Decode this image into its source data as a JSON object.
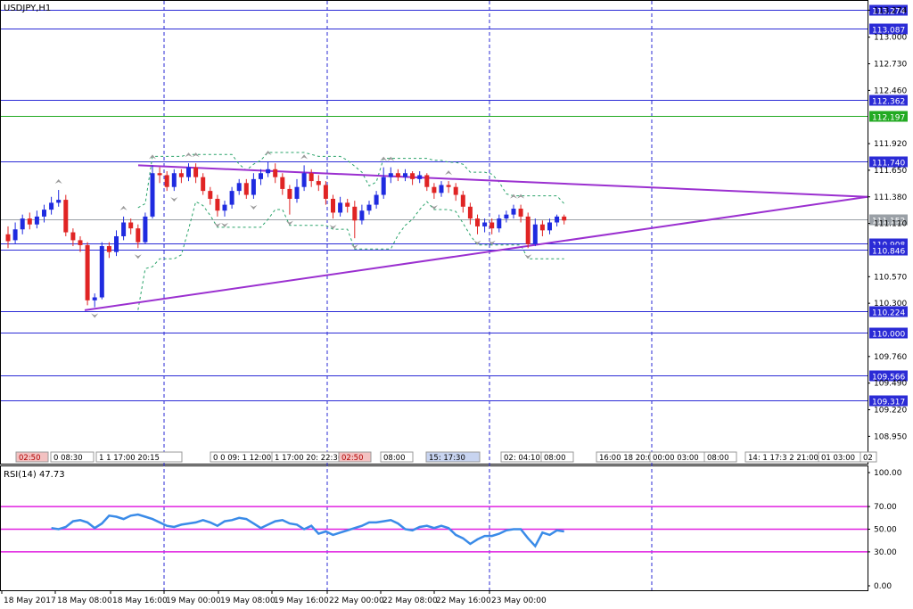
{
  "chart_data": [
    {
      "type": "candlestick",
      "title": "USDJPY,H1",
      "ylim": [
        108.7,
        113.35
      ],
      "yticks": [
        "113.274",
        "113.000",
        "112.730",
        "112.460",
        "111.920",
        "111.650",
        "111.380",
        "111.110",
        "110.570",
        "110.300",
        "109.760",
        "109.490",
        "109.220",
        "108.950"
      ],
      "h_levels": [
        {
          "value": 113.274,
          "label": "113.274",
          "color": "#2b2bd6"
        },
        {
          "value": 113.087,
          "label": "113.087",
          "color": "#2b2bd6"
        },
        {
          "value": 112.362,
          "label": "112.362",
          "color": "#2b2bd6"
        },
        {
          "value": 112.197,
          "label": "112.197",
          "color": "#22aa22"
        },
        {
          "value": 111.74,
          "label": "111.740",
          "color": "#2b2bd6"
        },
        {
          "value": 111.152,
          "label": "111.152",
          "color": "#9aa0a6"
        },
        {
          "value": 110.908,
          "label": "110.908",
          "color": "#2b2bd6"
        },
        {
          "value": 110.846,
          "label": "110.846",
          "color": "#2b2bd6"
        },
        {
          "value": 110.224,
          "label": "110.224",
          "color": "#2b2bd6"
        },
        {
          "value": 110.0,
          "label": "110.000",
          "color": "#2b2bd6"
        },
        {
          "value": 109.566,
          "label": "109.566",
          "color": "#2b2bd6"
        },
        {
          "value": 109.317,
          "label": "109.317",
          "color": "#2b2bd6"
        }
      ],
      "trendlines": [
        {
          "from": [
            0,
            111.7
          ],
          "to": [
            148,
            111.38
          ]
        },
        {
          "from": [
            0,
            110.23
          ],
          "to": [
            148,
            111.38
          ]
        }
      ],
      "candles": [
        [
          111.0,
          110.93,
          111.08,
          110.86
        ],
        [
          110.94,
          111.05,
          111.12,
          110.9
        ],
        [
          111.05,
          111.16,
          111.2,
          111.0
        ],
        [
          111.16,
          111.1,
          111.22,
          111.05
        ],
        [
          111.1,
          111.18,
          111.24,
          111.06
        ],
        [
          111.18,
          111.25,
          111.3,
          111.12
        ],
        [
          111.25,
          111.32,
          111.38,
          111.2
        ],
        [
          111.32,
          111.35,
          111.45,
          111.28
        ],
        [
          111.35,
          111.02,
          111.4,
          110.98
        ],
        [
          111.02,
          110.94,
          111.06,
          110.88
        ],
        [
          110.94,
          110.89,
          110.98,
          110.82
        ],
        [
          110.89,
          110.33,
          110.92,
          110.28
        ],
        [
          110.33,
          110.36,
          110.4,
          110.26
        ],
        [
          110.36,
          110.88,
          110.92,
          110.34
        ],
        [
          110.88,
          110.82,
          110.92,
          110.76
        ],
        [
          110.82,
          110.98,
          111.04,
          110.78
        ],
        [
          110.98,
          111.12,
          111.18,
          110.94
        ],
        [
          111.12,
          111.06,
          111.16,
          111.0
        ],
        [
          111.06,
          110.92,
          111.1,
          110.86
        ],
        [
          110.92,
          111.18,
          111.22,
          110.9
        ],
        [
          111.18,
          111.62,
          111.7,
          111.16
        ],
        [
          111.62,
          111.6,
          111.68,
          111.52
        ],
        [
          111.6,
          111.48,
          111.64,
          111.44
        ],
        [
          111.48,
          111.62,
          111.66,
          111.44
        ],
        [
          111.62,
          111.58,
          111.66,
          111.52
        ],
        [
          111.58,
          111.68,
          111.72,
          111.54
        ],
        [
          111.68,
          111.58,
          111.72,
          111.52
        ],
        [
          111.58,
          111.44,
          111.62,
          111.4
        ],
        [
          111.44,
          111.36,
          111.48,
          111.3
        ],
        [
          111.36,
          111.24,
          111.4,
          111.18
        ],
        [
          111.24,
          111.3,
          111.34,
          111.18
        ],
        [
          111.3,
          111.44,
          111.48,
          111.26
        ],
        [
          111.44,
          111.52,
          111.56,
          111.4
        ],
        [
          111.52,
          111.4,
          111.56,
          111.36
        ],
        [
          111.4,
          111.56,
          111.62,
          111.36
        ],
        [
          111.56,
          111.62,
          111.66,
          111.5
        ],
        [
          111.62,
          111.66,
          111.74,
          111.58
        ],
        [
          111.66,
          111.58,
          111.72,
          111.52
        ],
        [
          111.58,
          111.46,
          111.62,
          111.4
        ],
        [
          111.46,
          111.36,
          111.5,
          111.2
        ],
        [
          111.36,
          111.48,
          111.56,
          111.32
        ],
        [
          111.48,
          111.62,
          111.7,
          111.44
        ],
        [
          111.62,
          111.54,
          111.66,
          111.48
        ],
        [
          111.54,
          111.5,
          111.6,
          111.44
        ],
        [
          111.5,
          111.36,
          111.54,
          111.3
        ],
        [
          111.36,
          111.22,
          111.4,
          111.16
        ],
        [
          111.22,
          111.32,
          111.38,
          111.18
        ],
        [
          111.32,
          111.28,
          111.36,
          111.22
        ],
        [
          111.28,
          111.14,
          111.34,
          110.96
        ],
        [
          111.14,
          111.24,
          111.3,
          111.1
        ],
        [
          111.24,
          111.3,
          111.34,
          111.2
        ],
        [
          111.3,
          111.4,
          111.44,
          111.26
        ],
        [
          111.4,
          111.58,
          111.68,
          111.36
        ],
        [
          111.58,
          111.62,
          111.68,
          111.52
        ],
        [
          111.62,
          111.58,
          111.66,
          111.54
        ],
        [
          111.58,
          111.62,
          111.66,
          111.54
        ],
        [
          111.62,
          111.56,
          111.64,
          111.5
        ],
        [
          111.56,
          111.6,
          111.64,
          111.52
        ],
        [
          111.6,
          111.48,
          111.62,
          111.44
        ],
        [
          111.48,
          111.42,
          111.52,
          111.36
        ],
        [
          111.42,
          111.5,
          111.54,
          111.38
        ],
        [
          111.5,
          111.48,
          111.54,
          111.42
        ],
        [
          111.48,
          111.4,
          111.52,
          111.34
        ],
        [
          111.4,
          111.28,
          111.44,
          111.22
        ],
        [
          111.28,
          111.16,
          111.32,
          111.1
        ],
        [
          111.16,
          111.08,
          111.2,
          111.0
        ],
        [
          111.08,
          111.12,
          111.16,
          111.02
        ],
        [
          111.12,
          111.06,
          111.16,
          111.0
        ],
        [
          111.06,
          111.16,
          111.2,
          111.02
        ],
        [
          111.16,
          111.2,
          111.24,
          111.12
        ],
        [
          111.2,
          111.26,
          111.3,
          111.16
        ],
        [
          111.26,
          111.18,
          111.3,
          111.12
        ],
        [
          111.18,
          110.9,
          111.22,
          110.86
        ],
        [
          110.9,
          111.1,
          111.16,
          110.88
        ],
        [
          111.1,
          111.04,
          111.14,
          110.98
        ],
        [
          111.04,
          111.12,
          111.16,
          111.0
        ],
        [
          111.12,
          111.18,
          111.2,
          111.08
        ],
        [
          111.18,
          111.14,
          111.2,
          111.1
        ]
      ]
    },
    {
      "type": "line",
      "title": "RSI(14) 47.73",
      "ylim": [
        0,
        100
      ],
      "yticks": [
        "100.00",
        "70.00",
        "50.00",
        "30.00",
        "0.00"
      ],
      "levels": [
        70,
        50,
        30
      ],
      "series": [
        {
          "values": [
            51,
            50,
            52,
            57,
            58,
            56,
            51,
            55,
            62,
            61,
            59,
            62,
            63,
            61,
            59,
            56,
            53,
            52,
            54,
            55,
            56,
            58,
            56,
            53,
            57,
            58,
            60,
            59,
            55,
            51,
            54,
            57,
            58,
            55,
            54,
            50,
            53,
            46,
            48,
            45,
            47,
            49,
            51,
            53,
            56,
            56,
            57,
            58,
            55,
            50,
            49,
            52,
            53,
            51,
            53,
            51,
            45,
            42,
            37,
            41,
            44,
            44,
            46,
            49,
            50,
            50,
            42,
            35,
            47,
            45,
            49,
            48
          ]
        }
      ]
    }
  ],
  "x_labels": [
    "18 May 2017",
    "18 May 08:00",
    "18 May 16:00",
    "19 May 00:00",
    "19 May 08:00",
    "19 May 16:00",
    "22 May 00:00",
    "22 May 08:00",
    "22 May 16:00",
    "23 May 00:00"
  ],
  "time_tags": [
    {
      "text": "02:50",
      "color": "red"
    },
    {
      "text": "0 08:30",
      "color": "white"
    },
    {
      "text": "1 1 17:00 20:15",
      "color": "white"
    },
    {
      "text": "0 0 09: 1 12:00",
      "color": "white"
    },
    {
      "text": "1 17:00 20: 22:30",
      "color": "white"
    },
    {
      "text": "02:50",
      "color": "red"
    },
    {
      "text": "08:00",
      "color": "white"
    },
    {
      "text": "15: 17:30",
      "color": "blue"
    },
    {
      "text": "02: 04:10",
      "color": "white"
    },
    {
      "text": "08:00",
      "color": "white"
    },
    {
      "text": "16:00 18 20:0 22",
      "color": "white"
    },
    {
      "text": "00:00 03:00",
      "color": "white"
    },
    {
      "text": "08:00",
      "color": "white"
    },
    {
      "text": "14: 1 17:3 2 21:00",
      "color": "white"
    },
    {
      "text": "01 03:00",
      "color": "white"
    },
    {
      "text": "02",
      "color": "white"
    }
  ],
  "colors": {
    "bull": "#1f2be0",
    "bear": "#e02424",
    "trendline": "#9b30d0",
    "rsi_line": "#3a8be8",
    "rsi_levels": "#e020e0",
    "envelope": "#2aa36a",
    "vline": "#2b2bd6"
  }
}
